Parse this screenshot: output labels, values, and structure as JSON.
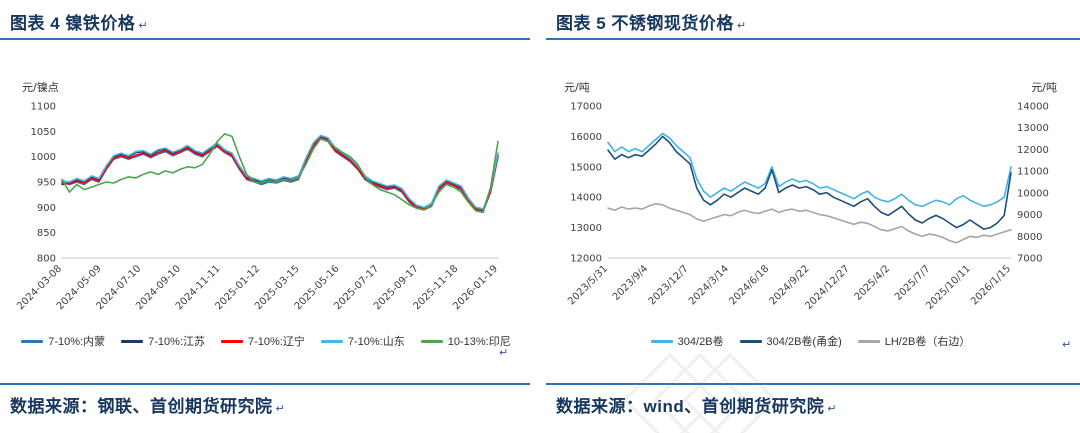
{
  "page": {
    "background": "#FFFFFF",
    "accent_text_color": "#17375E",
    "rule_color": "#2E74B5",
    "return_mark": "↵"
  },
  "header": {
    "left_title": "图表 4 镍铁价格",
    "right_title": "图表 5 不锈钢现货价格"
  },
  "footer": {
    "left_source": "数据来源：钢联、首创期货研究院",
    "right_source": "数据来源：wind、首创期货研究院"
  },
  "chart_data": [
    {
      "type": "line",
      "title": "镍铁价格",
      "unit_left": "元/镍点",
      "grid": false,
      "legend_position": "bottom",
      "y_left": {
        "min": 800,
        "max": 1100,
        "step": 50
      },
      "x_labels": [
        "2024-03-08",
        "2024-05-09",
        "2024-07-10",
        "2024-09-10",
        "2024-11-11",
        "2025-01-12",
        "2025-03-15",
        "2025-05-16",
        "2025-07-17",
        "2025-09-17",
        "2025-11-18",
        "2026-01-19"
      ],
      "series": [
        {
          "name": "7-10%:内蒙",
          "color": "#2E75B6",
          "axis": "left",
          "values": [
            950,
            945,
            950,
            945,
            955,
            950,
            975,
            995,
            1000,
            995,
            1000,
            1005,
            998,
            1005,
            1010,
            1002,
            1008,
            1015,
            1005,
            1000,
            1010,
            1020,
            1008,
            1000,
            975,
            955,
            950,
            945,
            950,
            948,
            953,
            950,
            955,
            990,
            1020,
            1035,
            1030,
            1010,
            1000,
            990,
            975,
            955,
            945,
            940,
            935,
            938,
            930,
            910,
            898,
            895,
            902,
            935,
            948,
            942,
            935,
            912,
            895,
            892,
            930,
            1000
          ]
        },
        {
          "name": "7-10%:江苏",
          "color": "#203864",
          "axis": "left",
          "values": [
            945,
            948,
            955,
            950,
            960,
            955,
            980,
            1000,
            1005,
            1000,
            1008,
            1010,
            1003,
            1012,
            1015,
            1007,
            1012,
            1020,
            1010,
            1005,
            1015,
            1025,
            1012,
            1005,
            980,
            960,
            955,
            950,
            955,
            952,
            958,
            955,
            960,
            995,
            1025,
            1040,
            1035,
            1015,
            1005,
            995,
            980,
            960,
            950,
            945,
            940,
            942,
            935,
            915,
            902,
            898,
            906,
            940,
            952,
            946,
            940,
            916,
            898,
            895,
            935,
            1005
          ]
        },
        {
          "name": "7-10%:辽宁",
          "color": "#FF0000",
          "axis": "left",
          "values": [
            948,
            946,
            952,
            948,
            957,
            952,
            977,
            997,
            1002,
            997,
            1003,
            1007,
            1000,
            1008,
            1012,
            1004,
            1010,
            1017,
            1007,
            1002,
            1012,
            1022,
            1010,
            1002,
            977,
            957,
            952,
            947,
            952,
            950,
            955,
            952,
            957,
            992,
            1022,
            1037,
            1032,
            1012,
            1002,
            992,
            977,
            957,
            947,
            942,
            937,
            940,
            932,
            912,
            900,
            897,
            904,
            937,
            950,
            944,
            937,
            914,
            897,
            894,
            932,
            1002
          ]
        },
        {
          "name": "7-10%:山东",
          "color": "#45B6E8",
          "axis": "left",
          "values": [
            953,
            950,
            957,
            952,
            962,
            957,
            982,
            1002,
            1007,
            1002,
            1010,
            1012,
            1005,
            1014,
            1017,
            1009,
            1014,
            1022,
            1012,
            1007,
            1017,
            1027,
            1014,
            1007,
            982,
            962,
            957,
            952,
            957,
            954,
            960,
            957,
            962,
            997,
            1027,
            1042,
            1037,
            1017,
            1007,
            997,
            982,
            962,
            952,
            947,
            942,
            944,
            937,
            917,
            904,
            900,
            908,
            942,
            954,
            948,
            942,
            918,
            900,
            897,
            937,
            1007
          ]
        },
        {
          "name": "10-13%:印尼",
          "color": "#4CA64C",
          "axis": "left",
          "values": [
            955,
            930,
            945,
            935,
            940,
            945,
            950,
            948,
            955,
            960,
            958,
            965,
            970,
            965,
            972,
            968,
            975,
            980,
            978,
            985,
            1005,
            1030,
            1045,
            1040,
            1000,
            965,
            950,
            948,
            952,
            950,
            955,
            953,
            958,
            985,
            1015,
            1035,
            1030,
            1018,
            1008,
            1000,
            985,
            960,
            945,
            935,
            930,
            925,
            915,
            905,
            898,
            895,
            905,
            930,
            945,
            940,
            930,
            910,
            893,
            890,
            940,
            1030
          ]
        }
      ]
    },
    {
      "type": "line",
      "title": "不锈钢现货价格",
      "unit_left": "元/吨",
      "unit_right": "元/吨",
      "grid": false,
      "legend_position": "bottom",
      "y_left": {
        "min": 12000,
        "max": 17000,
        "step": 1000
      },
      "y_right": {
        "min": 7000,
        "max": 14000,
        "step": 1000
      },
      "x_labels": [
        "2023/5/31",
        "2023/9/4",
        "2023/12/7",
        "2024/3/14",
        "2024/6/18",
        "2024/9/22",
        "2024/12/27",
        "2025/4/2",
        "2025/7/7",
        "2025/10/11",
        "2026/1/15"
      ],
      "series": [
        {
          "name": "304/2B卷",
          "color": "#41B4E4",
          "axis": "left",
          "values": [
            15800,
            15500,
            15650,
            15500,
            15600,
            15500,
            15700,
            15900,
            16100,
            15950,
            15700,
            15500,
            15300,
            14600,
            14200,
            14000,
            14150,
            14300,
            14200,
            14350,
            14500,
            14400,
            14300,
            14450,
            15000,
            14350,
            14500,
            14600,
            14500,
            14550,
            14450,
            14300,
            14350,
            14250,
            14150,
            14050,
            13950,
            14100,
            14200,
            14000,
            13900,
            13850,
            13950,
            14100,
            13900,
            13750,
            13700,
            13800,
            13900,
            13850,
            13750,
            13950,
            14050,
            13900,
            13800,
            13700,
            13750,
            13850,
            14000,
            15000
          ]
        },
        {
          "name": "304/2B卷(甬金)",
          "color": "#1F4E79",
          "axis": "left",
          "values": [
            15550,
            15250,
            15400,
            15300,
            15400,
            15350,
            15550,
            15750,
            16000,
            15800,
            15500,
            15300,
            15100,
            14300,
            13900,
            13750,
            13900,
            14100,
            14000,
            14150,
            14300,
            14200,
            14100,
            14300,
            14900,
            14150,
            14300,
            14400,
            14300,
            14350,
            14250,
            14100,
            14150,
            14000,
            13900,
            13800,
            13700,
            13850,
            13950,
            13700,
            13500,
            13400,
            13550,
            13700,
            13450,
            13250,
            13150,
            13300,
            13400,
            13300,
            13150,
            13000,
            13100,
            13250,
            13100,
            12950,
            13000,
            13150,
            13400,
            14800
          ]
        },
        {
          "name": "LH/2B卷（右边）",
          "color": "#A6A6A6",
          "axis": "right",
          "values": [
            9300,
            9200,
            9350,
            9250,
            9300,
            9250,
            9400,
            9500,
            9450,
            9300,
            9200,
            9100,
            9000,
            8800,
            8700,
            8800,
            8900,
            9000,
            8950,
            9100,
            9200,
            9100,
            9050,
            9150,
            9250,
            9100,
            9200,
            9250,
            9150,
            9200,
            9100,
            9000,
            8950,
            8850,
            8750,
            8650,
            8550,
            8650,
            8600,
            8450,
            8300,
            8250,
            8350,
            8450,
            8250,
            8100,
            8000,
            8100,
            8050,
            7950,
            7800,
            7700,
            7850,
            8000,
            7950,
            8050,
            8000,
            8100,
            8200,
            8300
          ]
        }
      ]
    }
  ]
}
